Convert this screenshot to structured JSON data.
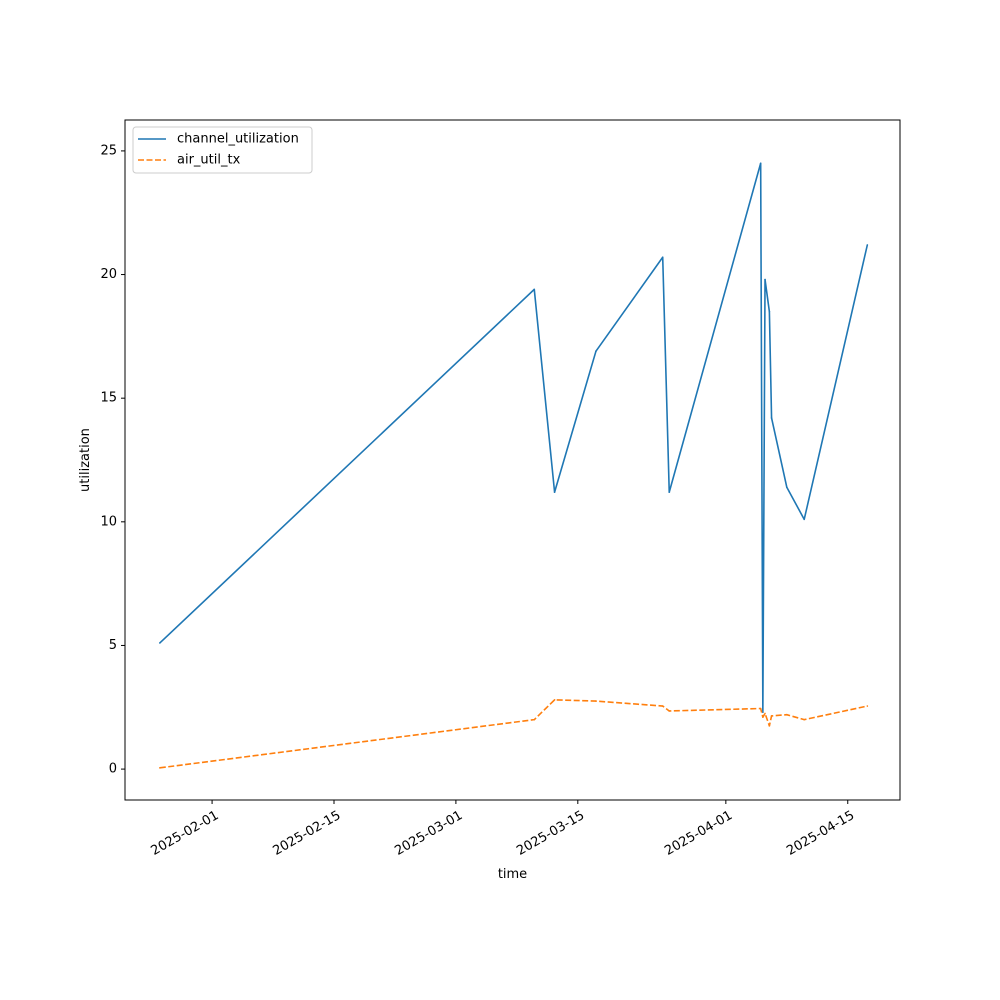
{
  "chart_data": {
    "type": "line",
    "title": "",
    "xlabel": "time",
    "ylabel": "utilization",
    "x_type": "date",
    "xlim": [
      "2025-01-22",
      "2025-04-21"
    ],
    "ylim": [
      -1.25,
      26.25
    ],
    "x_ticks": [
      "2025-02-01",
      "2025-02-15",
      "2025-03-01",
      "2025-03-15",
      "2025-04-01",
      "2025-04-15"
    ],
    "x_tick_labels": [
      "2025-02-01",
      "2025-02-15",
      "2025-03-01",
      "2025-03-15",
      "2025-04-01",
      "2025-04-15"
    ],
    "y_ticks": [
      0,
      5,
      10,
      15,
      20,
      25
    ],
    "y_tick_labels": [
      "0",
      "5",
      "10",
      "15",
      "20",
      "25"
    ],
    "grid": false,
    "legend_position": "upper-left",
    "series": [
      {
        "name": "channel_utilization",
        "color": "#1f77b4",
        "line_style": "solid",
        "x": [
          "2025-01-26T00:00",
          "2025-03-10T00:00",
          "2025-03-12T08:00",
          "2025-03-17T02:00",
          "2025-03-24T18:00",
          "2025-03-25T12:00",
          "2025-04-05T00:00",
          "2025-04-05T06:00",
          "2025-04-05T12:00",
          "2025-04-06T00:00",
          "2025-04-06T06:00",
          "2025-04-08T00:00",
          "2025-04-10T00:00",
          "2025-04-17T06:00"
        ],
        "values": [
          5.1,
          19.4,
          11.2,
          16.9,
          20.7,
          11.2,
          24.5,
          2.3,
          19.8,
          18.5,
          14.2,
          11.4,
          10.1,
          21.2
        ]
      },
      {
        "name": "air_util_tx",
        "color": "#ff7f0e",
        "line_style": "dashed",
        "x": [
          "2025-01-26T00:00",
          "2025-03-10T00:00",
          "2025-03-12T08:00",
          "2025-03-17T02:00",
          "2025-03-24T18:00",
          "2025-03-25T12:00",
          "2025-04-05T00:00",
          "2025-04-05T06:00",
          "2025-04-05T12:00",
          "2025-04-06T00:00",
          "2025-04-06T06:00",
          "2025-04-08T00:00",
          "2025-04-10T00:00",
          "2025-04-17T06:00"
        ],
        "values": [
          0.05,
          2.0,
          2.8,
          2.75,
          2.55,
          2.35,
          2.45,
          2.1,
          2.25,
          1.75,
          2.15,
          2.2,
          2.0,
          2.55
        ]
      }
    ]
  }
}
